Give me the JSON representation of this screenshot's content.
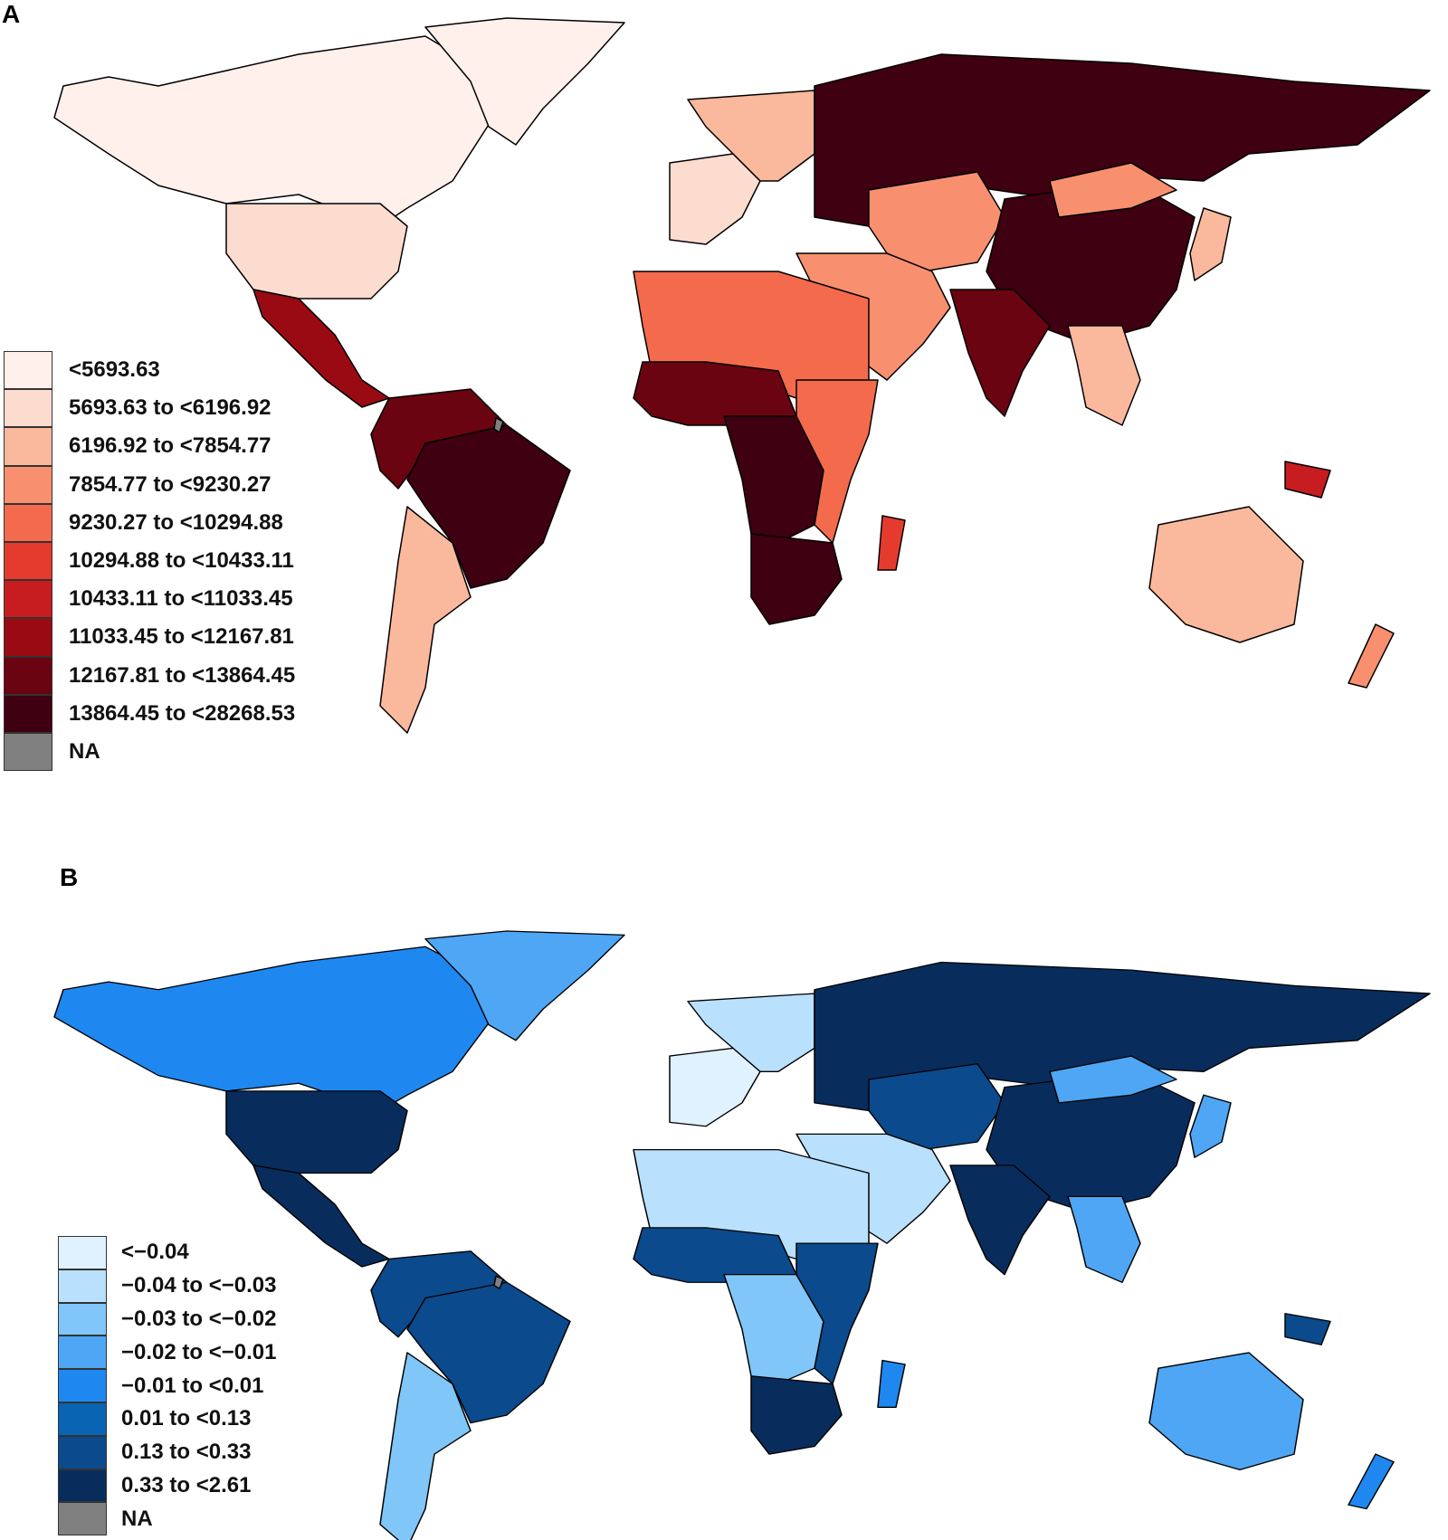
{
  "panels": [
    {
      "label": "A",
      "legend": [
        {
          "label": "<5693.63",
          "color": "#fff0ec"
        },
        {
          "label": "5693.63 to <6196.92",
          "color": "#fddcd0"
        },
        {
          "label": "6196.92 to <7854.77",
          "color": "#fab89d"
        },
        {
          "label": "7854.77 to <9230.27",
          "color": "#f8906f"
        },
        {
          "label": "9230.27 to <10294.88",
          "color": "#f46a4c"
        },
        {
          "label": "10294.88 to <10433.11",
          "color": "#e53b2f"
        },
        {
          "label": "10433.11 to <11033.45",
          "color": "#c81d20"
        },
        {
          "label": "11033.45 to <12167.81",
          "color": "#9a0a12"
        },
        {
          "label": "12167.81 to <13864.45",
          "color": "#6a0410"
        },
        {
          "label": "13864.45 to <28268.53",
          "color": "#3f0011"
        },
        {
          "label": "NA",
          "color": "#808080"
        }
      ]
    },
    {
      "label": "B",
      "legend": [
        {
          "label": "<−0.04",
          "color": "#e0f2ff"
        },
        {
          "label": "−0.04 to <−0.03",
          "color": "#b9e0fc"
        },
        {
          "label": "−0.03 to <−0.02",
          "color": "#80c6f8"
        },
        {
          "label": "−0.02 to <−0.01",
          "color": "#4ea6f5"
        },
        {
          "label": "−0.01 to <0.01",
          "color": "#1e88f0"
        },
        {
          "label": "0.01 to <0.13",
          "color": "#0a64b4"
        },
        {
          "label": "0.13 to <0.33",
          "color": "#0b4a8c"
        },
        {
          "label": "0.33 to <2.61",
          "color": "#082d5c"
        },
        {
          "label": "NA",
          "color": "#808080"
        }
      ]
    }
  ],
  "regions": [
    "north_america",
    "greenland",
    "usa",
    "mexico_central_america",
    "south_america_north",
    "brazil",
    "southern_cone",
    "europe_west",
    "europe_east",
    "russia",
    "central_asia",
    "middle_east",
    "china",
    "mongolia",
    "south_asia",
    "southeast_asia",
    "japan",
    "north_africa",
    "sahel_west_africa",
    "central_africa",
    "east_africa",
    "southern_africa",
    "madagascar",
    "australia",
    "new_zealand",
    "papua"
  ],
  "map_fills": {
    "A": {
      "north_america": 0,
      "greenland": 0,
      "usa": 1,
      "mexico_central_america": 7,
      "south_america_north": 8,
      "brazil": 9,
      "southern_cone": 2,
      "europe_west": 1,
      "europe_east": 2,
      "russia": 9,
      "central_asia": 3,
      "middle_east": 3,
      "china": 9,
      "mongolia": 3,
      "south_asia": 8,
      "southeast_asia": 2,
      "japan": 2,
      "north_africa": 4,
      "sahel_west_africa": 8,
      "central_africa": 9,
      "east_africa": 4,
      "southern_africa": 9,
      "madagascar": 5,
      "australia": 2,
      "new_zealand": 3,
      "papua": 6
    },
    "B": {
      "north_america": 4,
      "greenland": 3,
      "usa": 7,
      "mexico_central_america": 7,
      "south_america_north": 6,
      "brazil": 6,
      "southern_cone": 2,
      "europe_west": 0,
      "europe_east": 1,
      "russia": 7,
      "central_asia": 6,
      "middle_east": 1,
      "china": 7,
      "mongolia": 3,
      "south_asia": 7,
      "southeast_asia": 3,
      "japan": 3,
      "north_africa": 1,
      "sahel_west_africa": 6,
      "central_africa": 2,
      "east_africa": 6,
      "southern_africa": 7,
      "madagascar": 4,
      "australia": 3,
      "new_zealand": 4,
      "papua": 6
    }
  }
}
